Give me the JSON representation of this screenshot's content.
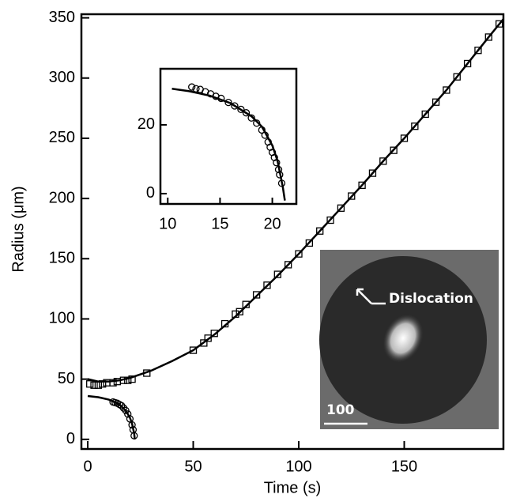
{
  "chart_data": [
    {
      "type": "scatter",
      "xlabel": "Time (s)",
      "ylabel": "Radius (μm)",
      "xlim": [
        -3,
        197
      ],
      "ylim": [
        -8,
        353
      ],
      "xticks": [
        0,
        50,
        100,
        150
      ],
      "yticks": [
        0,
        50,
        100,
        150,
        200,
        250,
        300,
        350
      ],
      "annotations": [
        "Dislocation",
        "100"
      ],
      "series": [
        {
          "marker": "square",
          "color": "#000000",
          "x": [
            1,
            3,
            5,
            7,
            9,
            12,
            14,
            17,
            19,
            21,
            28,
            50,
            55,
            57,
            60,
            65,
            70,
            72,
            75,
            80,
            85,
            90,
            95,
            100,
            105,
            110,
            115,
            120,
            125,
            130,
            135,
            140,
            145,
            150,
            155,
            160,
            165,
            170,
            175,
            180,
            185,
            190,
            195
          ],
          "values": [
            46,
            45,
            45,
            46,
            47,
            47,
            48,
            49,
            49,
            50,
            55,
            74,
            80,
            84,
            88,
            96,
            104,
            106,
            112,
            120,
            128,
            137,
            145,
            154,
            163,
            173,
            182,
            192,
            202,
            211,
            221,
            231,
            240,
            250,
            260,
            270,
            280,
            290,
            301,
            312,
            323,
            334,
            345
          ]
        },
        {
          "marker": "line",
          "color": "#000000",
          "x": [
            0,
            5,
            10,
            15,
            20,
            25,
            30,
            40,
            50,
            60,
            70,
            80,
            90,
            100,
            110,
            120,
            130,
            140,
            150,
            160,
            170,
            180,
            190,
            197
          ],
          "values": [
            50,
            48,
            48,
            49,
            51,
            54,
            57,
            65,
            74,
            87,
            102,
            119,
            136,
            154,
            173,
            192,
            211,
            231,
            250,
            270,
            290,
            312,
            334,
            349
          ]
        },
        {
          "marker": "circle",
          "color": "#000000",
          "x": [
            12,
            13,
            14,
            15,
            16,
            17,
            18,
            19,
            20,
            21,
            21.5,
            22
          ],
          "values": [
            31,
            30.5,
            30,
            29,
            28,
            26,
            24,
            21,
            17,
            12,
            8,
            3
          ]
        },
        {
          "marker": "line",
          "color": "#000000",
          "x": [
            0,
            5,
            10,
            15,
            18,
            20,
            21,
            22,
            22.3
          ],
          "values": [
            36,
            35,
            33,
            29,
            24,
            18,
            13,
            5,
            0
          ]
        }
      ]
    },
    {
      "type": "scatter",
      "xlim": [
        9.3,
        22.3
      ],
      "ylim": [
        -3,
        36.3
      ],
      "xticks": [
        10,
        15,
        20
      ],
      "yticks": [
        0,
        20
      ],
      "series": [
        {
          "marker": "circle",
          "color": "#000000",
          "x": [
            12.3,
            12.7,
            13.1,
            13.6,
            14.1,
            14.6,
            15.1,
            15.8,
            16.4,
            17,
            17.5,
            18,
            18.5,
            19,
            19.3,
            19.6,
            19.8,
            20,
            20.2,
            20.4,
            20.6,
            20.7,
            20.9
          ],
          "values": [
            31,
            30.5,
            30.3,
            29.6,
            29,
            28.3,
            27.7,
            26.5,
            25.5,
            24.5,
            23.5,
            22,
            20.5,
            18.5,
            17,
            15,
            13.5,
            12,
            10.5,
            9,
            7,
            5.5,
            3
          ]
        },
        {
          "marker": "line",
          "color": "#000000",
          "x": [
            10.4,
            12,
            14,
            16,
            18,
            19,
            20,
            20.5,
            21,
            21.2
          ],
          "values": [
            30.5,
            29.8,
            28.5,
            26.3,
            22.5,
            19.5,
            14,
            9.5,
            2,
            -2
          ]
        }
      ]
    }
  ]
}
